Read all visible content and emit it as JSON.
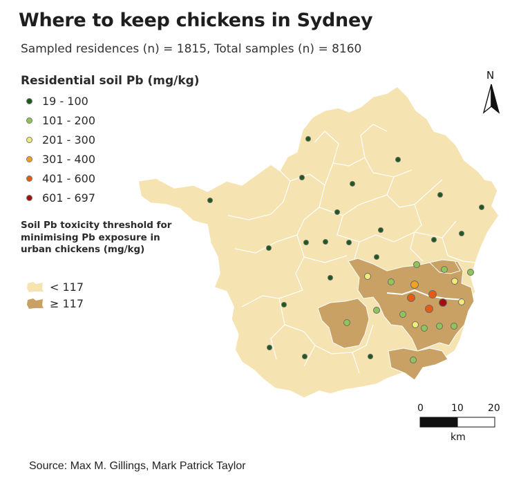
{
  "title": "Where to keep chickens in Sydney",
  "subtitle": "Sampled residences (n) = 1815, Total samples (n) = 8160",
  "legend": {
    "title": "Residential soil Pb (mg/kg)",
    "classes": [
      {
        "label": "19 - 100",
        "color": "#1e5a1e"
      },
      {
        "label": "101 - 200",
        "color": "#8fc45a"
      },
      {
        "label": "201 - 300",
        "color": "#f0ec7a"
      },
      {
        "label": "301 - 400",
        "color": "#f0a21e"
      },
      {
        "label": "401 - 600",
        "color": "#e85a14"
      },
      {
        "label": "601 - 697",
        "color": "#a01010"
      }
    ]
  },
  "threshold": {
    "title": "Soil Pb toxicity threshold for minimising Pb exposure in urban chickens (mg/kg)",
    "items": [
      {
        "label": "< 117",
        "color": "#f6e3b2"
      },
      {
        "label": "≥ 117",
        "color": "#c9a165"
      }
    ]
  },
  "north": {
    "label": "N",
    "icon": "north-arrow-icon"
  },
  "scale": {
    "ticks": [
      "0",
      "10",
      "20"
    ],
    "unit": "km"
  },
  "source": "Source: Max M. Gillings, Mark Patrick Taylor"
}
